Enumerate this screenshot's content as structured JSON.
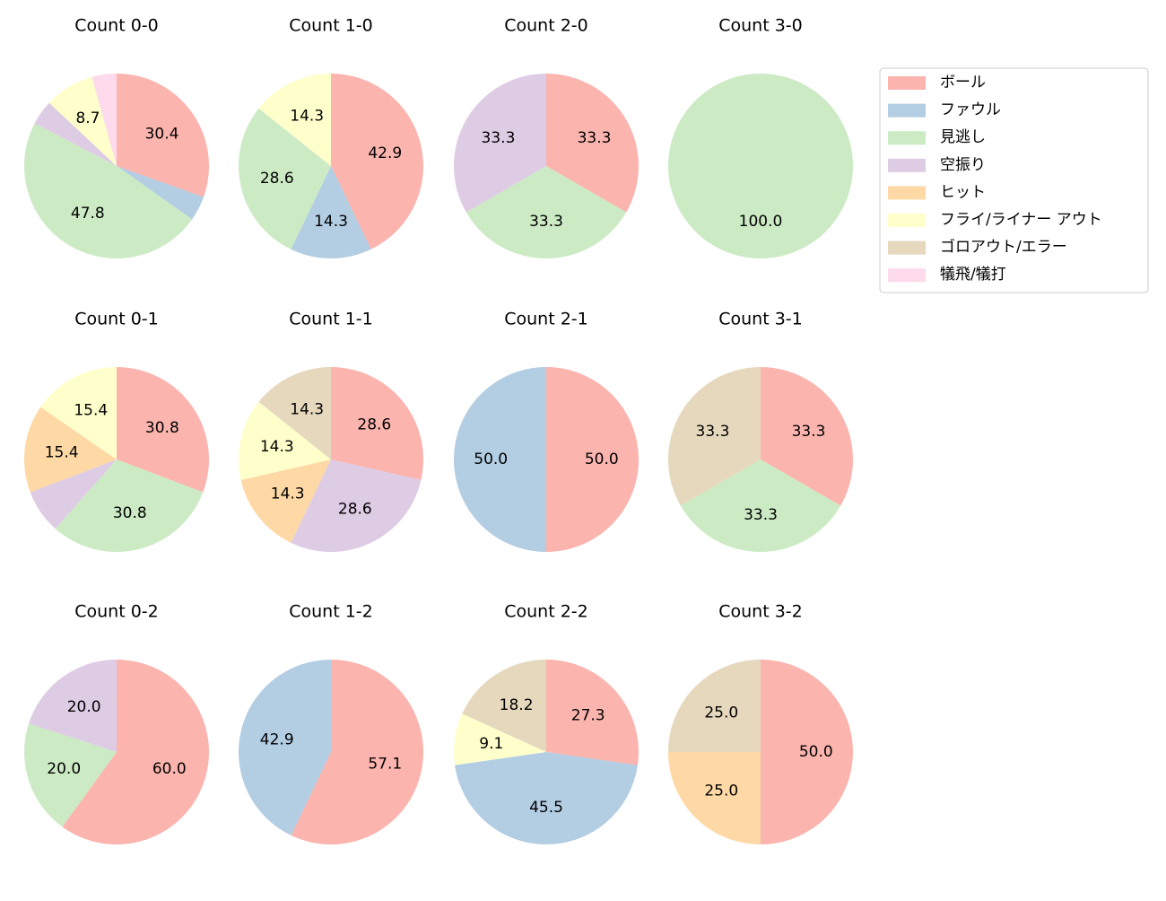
{
  "chart_data": [
    {
      "type": "pie",
      "title": "Count 0-0",
      "values": [
        30.4,
        4.3,
        47.8,
        4.3,
        0,
        8.7,
        0,
        4.3
      ],
      "value_labels": [
        "30.4",
        null,
        "47.8",
        null,
        null,
        "8.7",
        null,
        null
      ]
    },
    {
      "type": "pie",
      "title": "Count 1-0",
      "values": [
        42.9,
        14.3,
        28.6,
        0,
        0,
        14.3,
        0,
        0
      ],
      "value_labels": [
        "42.9",
        "14.3",
        "28.6",
        null,
        null,
        "14.3",
        null,
        null
      ]
    },
    {
      "type": "pie",
      "title": "Count 2-0",
      "values": [
        33.3,
        0,
        33.3,
        33.3,
        0,
        0,
        0,
        0
      ],
      "value_labels": [
        "33.3",
        null,
        "33.3",
        "33.3",
        null,
        null,
        null,
        null
      ]
    },
    {
      "type": "pie",
      "title": "Count 3-0",
      "values": [
        0,
        0,
        100,
        0,
        0,
        0,
        0,
        0
      ],
      "value_labels": [
        null,
        null,
        "100.0",
        null,
        null,
        null,
        null,
        null
      ]
    },
    {
      "type": "pie",
      "title": "Count 0-1",
      "values": [
        30.8,
        0,
        30.8,
        7.7,
        15.4,
        15.4,
        0,
        0
      ],
      "value_labels": [
        "30.8",
        null,
        "30.8",
        null,
        "15.4",
        "15.4",
        null,
        null
      ]
    },
    {
      "type": "pie",
      "title": "Count 1-1",
      "values": [
        28.6,
        0,
        0,
        28.6,
        14.3,
        14.3,
        14.3,
        0
      ],
      "value_labels": [
        "28.6",
        null,
        null,
        "28.6",
        "14.3",
        "14.3",
        "14.3",
        null
      ]
    },
    {
      "type": "pie",
      "title": "Count 2-1",
      "values": [
        50,
        50,
        0,
        0,
        0,
        0,
        0,
        0
      ],
      "value_labels": [
        "50.0",
        "50.0",
        null,
        null,
        null,
        null,
        null,
        null
      ]
    },
    {
      "type": "pie",
      "title": "Count 3-1",
      "values": [
        33.3,
        0,
        33.3,
        0,
        0,
        0,
        33.3,
        0
      ],
      "value_labels": [
        "33.3",
        null,
        "33.3",
        null,
        null,
        null,
        "33.3",
        null
      ]
    },
    {
      "type": "pie",
      "title": "Count 0-2",
      "values": [
        60,
        0,
        20,
        20,
        0,
        0,
        0,
        0
      ],
      "value_labels": [
        "60.0",
        null,
        "20.0",
        "20.0",
        null,
        null,
        null,
        null
      ]
    },
    {
      "type": "pie",
      "title": "Count 1-2",
      "values": [
        57.1,
        42.9,
        0,
        0,
        0,
        0,
        0,
        0
      ],
      "value_labels": [
        "57.1",
        "42.9",
        null,
        null,
        null,
        null,
        null,
        null
      ]
    },
    {
      "type": "pie",
      "title": "Count 2-2",
      "values": [
        27.3,
        45.5,
        0,
        0,
        0,
        9.1,
        18.2,
        0
      ],
      "value_labels": [
        "27.3",
        "45.5",
        null,
        null,
        null,
        "9.1",
        "18.2",
        null
      ]
    },
    {
      "type": "pie",
      "title": "Count 3-2",
      "values": [
        50,
        0,
        0,
        0,
        25,
        0,
        25,
        0
      ],
      "value_labels": [
        "50.0",
        null,
        null,
        null,
        "25.0",
        null,
        "25.0",
        null
      ]
    }
  ],
  "legend": {
    "labels": [
      "ボール",
      "ファウル",
      "見逃し",
      "空振り",
      "ヒット",
      "フライ/ライナー アウト",
      "ゴロアウト/エラー",
      "犠飛/犠打"
    ],
    "colors": [
      "#fbb4ae",
      "#b3cde3",
      "#ccebc5",
      "#decbe4",
      "#fed9a6",
      "#ffffcc",
      "#e5d8bd",
      "#fddaec"
    ]
  }
}
